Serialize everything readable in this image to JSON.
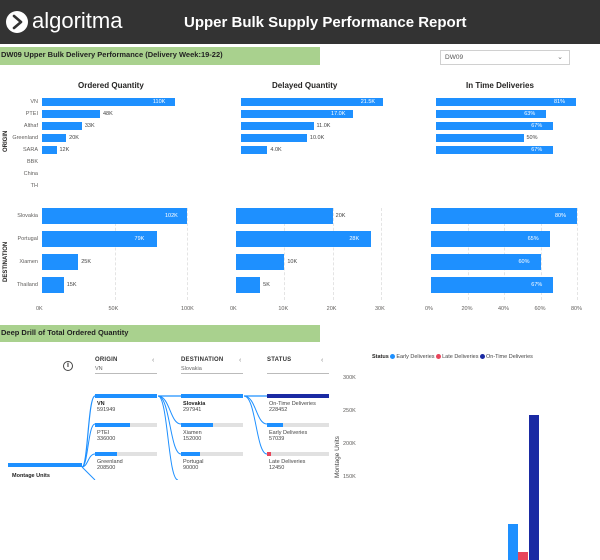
{
  "header": {
    "logo_text": "algoritma",
    "title": "Upper Bulk Supply Performance Report"
  },
  "section1": {
    "band": "DW09 Upper Bulk Delivery Performance (Delivery Week:19-22)"
  },
  "filter": {
    "selected": "DW09"
  },
  "axis_titles": {
    "origin": "ORIGIN",
    "destination": "DESTINATION"
  },
  "chart_data": [
    {
      "id": "ordered-origin",
      "type": "bar",
      "title": "Ordered Quantity",
      "group": "ORIGIN",
      "categories": [
        "VN",
        "PTEI",
        "Althaf",
        "Greenland",
        "SARA",
        "BBK",
        "China",
        "TH"
      ],
      "values": [
        110000,
        48000,
        33000,
        20000,
        12000,
        null,
        null,
        null
      ],
      "labels": [
        "110K",
        "48K",
        "33K",
        "20K",
        "12K",
        "",
        "",
        ""
      ],
      "xlim": [
        0,
        120000
      ]
    },
    {
      "id": "delayed-origin",
      "type": "bar",
      "title": "Delayed Quantity",
      "group": "ORIGIN",
      "categories": [
        "VN",
        "PTEI",
        "Althaf",
        "Greenland",
        "SARA"
      ],
      "values": [
        21500,
        17000,
        11000,
        10000,
        4000
      ],
      "labels": [
        "21.5K",
        "17.0K",
        "11.0K",
        "10.0K",
        "4.0K"
      ],
      "xlim": [
        0,
        22000
      ]
    },
    {
      "id": "intime-origin",
      "type": "bar",
      "title": "In Time Deliveries",
      "group": "ORIGIN",
      "categories": [
        "VN",
        "PTEI",
        "Althaf",
        "Greenland",
        "SARA"
      ],
      "values": [
        81,
        63,
        67,
        50,
        67
      ],
      "labels": [
        "81%",
        "63%",
        "67%",
        "50%",
        "67%"
      ],
      "xlim": [
        0,
        80
      ]
    },
    {
      "id": "ordered-destination",
      "type": "bar",
      "group": "DESTINATION",
      "categories": [
        "Slovakia",
        "Portugal",
        "Xiamen",
        "Thailand"
      ],
      "values": [
        102000,
        79000,
        25000,
        15000
      ],
      "labels": [
        "102K",
        "79K",
        "25K",
        "15K"
      ],
      "xlim": [
        0,
        100000
      ],
      "ticks": [
        "0K",
        "50K",
        "100K"
      ]
    },
    {
      "id": "delayed-destination",
      "type": "bar",
      "group": "DESTINATION",
      "categories": [
        "Slovakia",
        "Portugal",
        "Xiamen",
        "Thailand"
      ],
      "values": [
        20000,
        28000,
        10000,
        5000
      ],
      "labels": [
        "20K",
        "28K",
        "10K",
        "5K"
      ],
      "xlim": [
        0,
        30000
      ],
      "ticks": [
        "0K",
        "10K",
        "20K",
        "30K"
      ]
    },
    {
      "id": "intime-destination",
      "type": "bar",
      "group": "DESTINATION",
      "categories": [
        "Slovakia",
        "Portugal",
        "Xiamen",
        "Thailand"
      ],
      "values": [
        80,
        65,
        60,
        67
      ],
      "labels": [
        "80%",
        "65%",
        "60%",
        "67%"
      ],
      "xlim": [
        0,
        80
      ],
      "ticks": [
        "0%",
        "20%",
        "40%",
        "60%",
        "80%"
      ]
    },
    {
      "id": "status-columns",
      "type": "bar",
      "title": "Status",
      "series": [
        {
          "name": "Early Deliveries",
          "color": "#1e90ff",
          "values": [
            57039
          ]
        },
        {
          "name": "Late Deliveries",
          "color": "#e8455b",
          "values": [
            12450
          ]
        },
        {
          "name": "On-Time Deliveries",
          "color": "#1a2aa3",
          "values": [
            228452
          ]
        }
      ],
      "ylabel": "Montage Units",
      "ylim": [
        0,
        300000
      ],
      "yticks": [
        "300K",
        "250K",
        "200K",
        "150K"
      ]
    }
  ],
  "section2": {
    "band": "Deep Drill of Total Ordered Quantity"
  },
  "decomp": {
    "headers": {
      "origin": "ORIGIN",
      "origin_sub": "VN",
      "destination": "DESTINATION",
      "destination_sub": "Slovakia",
      "status": "STATUS"
    },
    "root_label": "Montage Units",
    "origin": [
      {
        "name": "VN",
        "value": "591949",
        "frac": 1.0
      },
      {
        "name": "PTEI",
        "value": "336000",
        "frac": 0.57
      },
      {
        "name": "Greenland",
        "value": "208500",
        "frac": 0.35
      }
    ],
    "destination": [
      {
        "name": "Slovakia",
        "value": "297941",
        "frac": 1.0
      },
      {
        "name": "Xiamen",
        "value": "152000",
        "frac": 0.51
      },
      {
        "name": "Portugal",
        "value": "90000",
        "frac": 0.3
      }
    ],
    "status": [
      {
        "name": "On-Time Deliveries",
        "value": "228452",
        "frac": 1.0,
        "color": "#1a2aa3"
      },
      {
        "name": "Early Deliveries",
        "value": "57039",
        "frac": 0.25,
        "color": "#1e90ff"
      },
      {
        "name": "Late Deliveries",
        "value": "12450",
        "frac": 0.06,
        "color": "#e8455b"
      }
    ]
  },
  "icons": {
    "filter_chevron": "chevron-down-icon",
    "info": "info-icon",
    "collapse": "chevron-left-icon"
  }
}
